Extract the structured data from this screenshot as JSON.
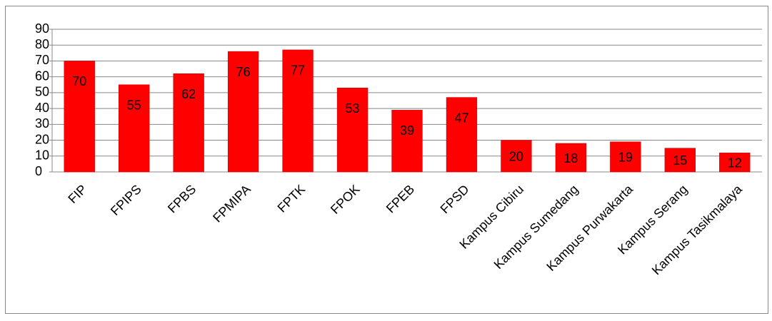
{
  "chart_data": {
    "type": "bar",
    "categories": [
      "FIP",
      "FPIPS",
      "FPBS",
      "FPMIPA",
      "FPTK",
      "FPOK",
      "FPEB",
      "FPSD",
      "Kampus Cibiru",
      "Kampus Sumedang",
      "Kampus Purwakarta",
      "Kampus Serang",
      "Kampus Tasikmalaya"
    ],
    "values": [
      70,
      55,
      62,
      76,
      77,
      53,
      39,
      47,
      20,
      18,
      19,
      15,
      12
    ],
    "color": "#ff0000",
    "ylim": [
      0,
      90
    ],
    "yticks": [
      0,
      10,
      20,
      30,
      40,
      50,
      60,
      70,
      80,
      90
    ],
    "grid": true
  }
}
